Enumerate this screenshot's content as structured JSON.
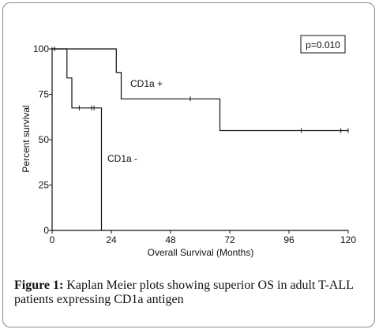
{
  "chart_data": {
    "type": "line",
    "xlabel": "Overall Survival (Months)",
    "ylabel": "Percent survival",
    "x_ticks": [
      0,
      24,
      48,
      72,
      96,
      120
    ],
    "y_ticks": [
      0,
      25,
      50,
      75,
      100
    ],
    "xlim": [
      0,
      120
    ],
    "ylim": [
      0,
      100
    ],
    "annotation": "p=0.010",
    "series": [
      {
        "name": "CD1a +",
        "steps": [
          [
            0,
            100
          ],
          [
            26,
            100
          ],
          [
            26,
            87
          ],
          [
            28,
            87
          ],
          [
            28,
            72.5
          ],
          [
            68,
            72.5
          ],
          [
            68,
            55
          ],
          [
            120,
            55
          ]
        ],
        "censors": [
          [
            1,
            100
          ],
          [
            56,
            72.5
          ],
          [
            101,
            55
          ],
          [
            117,
            55
          ],
          [
            120,
            55
          ]
        ]
      },
      {
        "name": "CD1a -",
        "steps": [
          [
            0,
            100
          ],
          [
            6,
            100
          ],
          [
            6,
            84
          ],
          [
            8,
            84
          ],
          [
            8,
            67.5
          ],
          [
            20,
            67.5
          ],
          [
            20,
            0
          ]
        ],
        "censors": [
          [
            11,
            67.5
          ],
          [
            16,
            67.5
          ],
          [
            17,
            67.5
          ]
        ]
      }
    ]
  },
  "caption": {
    "label": "Figure 1:",
    "text": " Kaplan Meier plots showing superior OS in adult T-ALL patients expressing CD1a antigen"
  }
}
